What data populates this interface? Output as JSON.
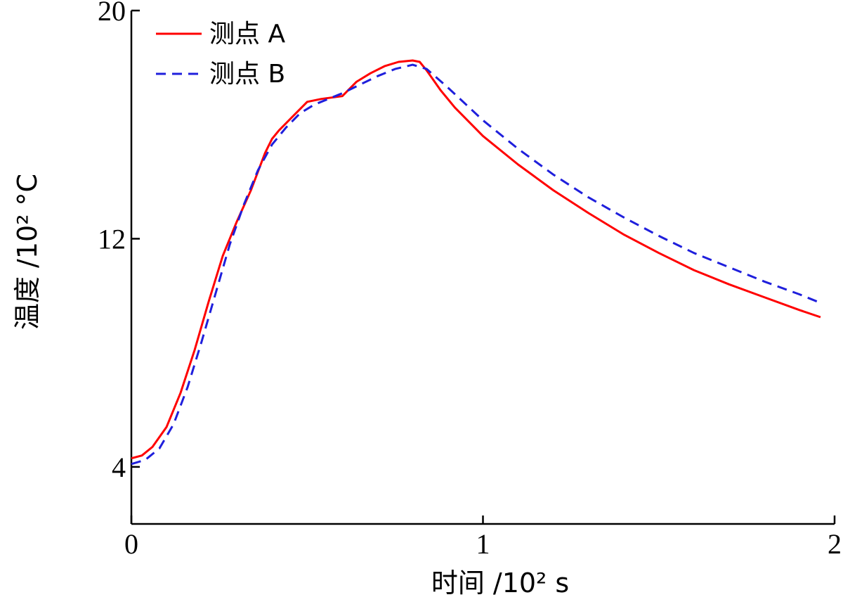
{
  "chart_data": {
    "type": "line",
    "xlabel": "时间 /10² s",
    "ylabel": "温度 /10² °C",
    "xlim": [
      0,
      2
    ],
    "ylim": [
      2,
      20
    ],
    "x_ticks": [
      "0",
      "1",
      "2"
    ],
    "y_ticks": [
      "4",
      "12",
      "20"
    ],
    "grid": false,
    "legend": "top-left",
    "series": [
      {
        "name": "测点 A",
        "color": "#ff0000",
        "style": "solid",
        "x": [
          0,
          0.03,
          0.06,
          0.1,
          0.14,
          0.18,
          0.22,
          0.26,
          0.3,
          0.34,
          0.38,
          0.4,
          0.42,
          0.46,
          0.5,
          0.54,
          0.6,
          0.64,
          0.68,
          0.72,
          0.76,
          0.8,
          0.82,
          0.84,
          0.88,
          0.92,
          1.0,
          1.1,
          1.2,
          1.3,
          1.4,
          1.5,
          1.6,
          1.7,
          1.8,
          1.9,
          1.96
        ],
        "y": [
          4.3,
          4.4,
          4.7,
          5.4,
          6.6,
          8.1,
          9.8,
          11.4,
          12.6,
          13.7,
          15.0,
          15.5,
          15.8,
          16.3,
          16.8,
          16.9,
          17.0,
          17.5,
          17.8,
          18.05,
          18.2,
          18.25,
          18.2,
          17.9,
          17.2,
          16.6,
          15.6,
          14.6,
          13.7,
          12.9,
          12.15,
          11.5,
          10.9,
          10.4,
          9.95,
          9.5,
          9.25
        ]
      },
      {
        "name": "测点 B",
        "color": "#1f1fdc",
        "style": "dashed",
        "x": [
          0,
          0.04,
          0.08,
          0.12,
          0.16,
          0.2,
          0.24,
          0.28,
          0.32,
          0.36,
          0.4,
          0.44,
          0.48,
          0.52,
          0.56,
          0.6,
          0.65,
          0.7,
          0.75,
          0.8,
          0.84,
          0.9,
          1.0,
          1.1,
          1.2,
          1.3,
          1.4,
          1.5,
          1.6,
          1.7,
          1.8,
          1.9,
          1.96
        ],
        "y": [
          4.1,
          4.25,
          4.65,
          5.5,
          6.8,
          8.4,
          10.1,
          11.8,
          13.2,
          14.4,
          15.3,
          15.9,
          16.4,
          16.7,
          16.9,
          17.1,
          17.4,
          17.7,
          17.95,
          18.1,
          17.95,
          17.3,
          16.15,
          15.15,
          14.25,
          13.45,
          12.75,
          12.1,
          11.5,
          11.0,
          10.5,
          10.05,
          9.75
        ]
      }
    ]
  }
}
